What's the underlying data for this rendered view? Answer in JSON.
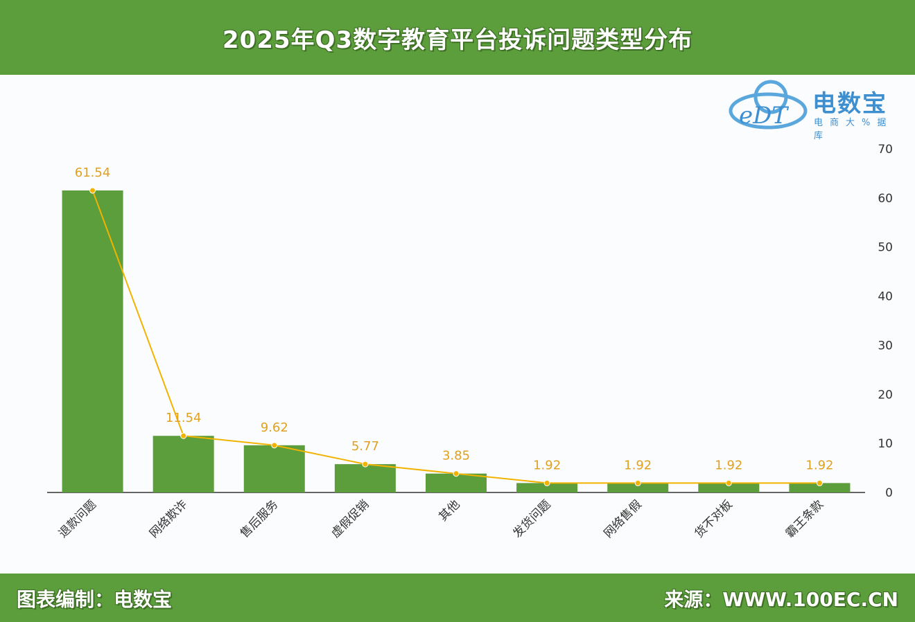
{
  "title": "2025年Q3数字教育平台投诉问题类型分布",
  "footer": {
    "left": "图表编制：电数宝",
    "right": "来源：WWW.100EC.CN"
  },
  "logo": {
    "mark": "eDT",
    "brand": "电数宝",
    "sub": "电商大%据库"
  },
  "colors": {
    "band": "#5c9e3c",
    "bar": "#5c9e3c",
    "line": "#f2b300",
    "label": "#e0a020",
    "axis": "#333333"
  },
  "chart_data": {
    "type": "bar",
    "categories": [
      "退款问题",
      "网络欺诈",
      "售后服务",
      "虚假促销",
      "其他",
      "发货问题",
      "网络售假",
      "货不对板",
      "霸王条款"
    ],
    "values": [
      61.54,
      11.54,
      9.62,
      5.77,
      3.85,
      1.92,
      1.92,
      1.92,
      1.92
    ],
    "overlay": "line",
    "ylim": [
      0,
      70
    ],
    "yticks": [
      0,
      10,
      20,
      30,
      40,
      50,
      60,
      70
    ],
    "y_axis_side": "right",
    "grid": false,
    "legend": "none"
  }
}
